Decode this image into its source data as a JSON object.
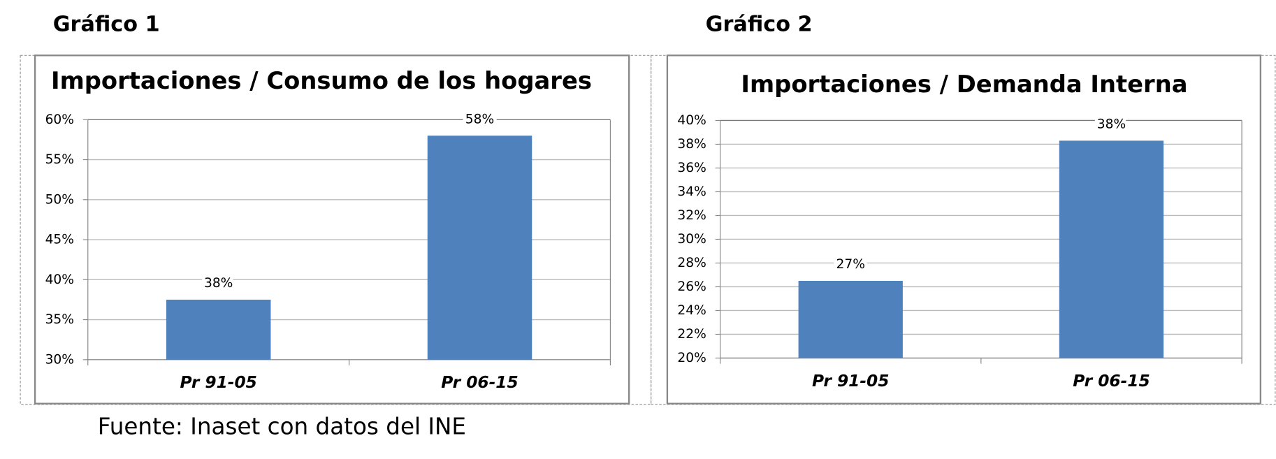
{
  "chart_data": [
    {
      "type": "bar",
      "caption": "Gráfico 1",
      "title": "Importaciones / Consumo de los hogares",
      "categories": [
        "Pr 91-05",
        "Pr 06-15"
      ],
      "values": [
        37.5,
        58
      ],
      "value_labels": [
        "38%",
        "58%"
      ],
      "color": "#4f81bd",
      "ylim": [
        30,
        60
      ],
      "yticks": [
        {
          "value": 30,
          "label": "30%"
        },
        {
          "value": 35,
          "label": "35%"
        },
        {
          "value": 40,
          "label": "40%"
        },
        {
          "value": 45,
          "label": "45%"
        },
        {
          "value": 50,
          "label": "50%"
        },
        {
          "value": 55,
          "label": "55%"
        },
        {
          "value": 60,
          "label": "60%"
        }
      ],
      "grid": true
    },
    {
      "type": "bar",
      "caption": "Gráfico 2",
      "title": "Importaciones / Demanda Interna",
      "categories": [
        "Pr 91-05",
        "Pr 06-15"
      ],
      "values": [
        26.5,
        38.3
      ],
      "value_labels": [
        "27%",
        "38%"
      ],
      "color": "#4f81bd",
      "ylim": [
        20,
        40
      ],
      "yticks": [
        {
          "value": 20,
          "label": "20%"
        },
        {
          "value": 22,
          "label": "22%"
        },
        {
          "value": 24,
          "label": "24%"
        },
        {
          "value": 26,
          "label": "26%"
        },
        {
          "value": 28,
          "label": "28%"
        },
        {
          "value": 30,
          "label": "30%"
        },
        {
          "value": 32,
          "label": "32%"
        },
        {
          "value": 34,
          "label": "34%"
        },
        {
          "value": 36,
          "label": "36%"
        },
        {
          "value": 38,
          "label": "38%"
        },
        {
          "value": 40,
          "label": "40%"
        }
      ],
      "grid": true
    }
  ],
  "source": "Fuente: Inaset con datos del INE"
}
